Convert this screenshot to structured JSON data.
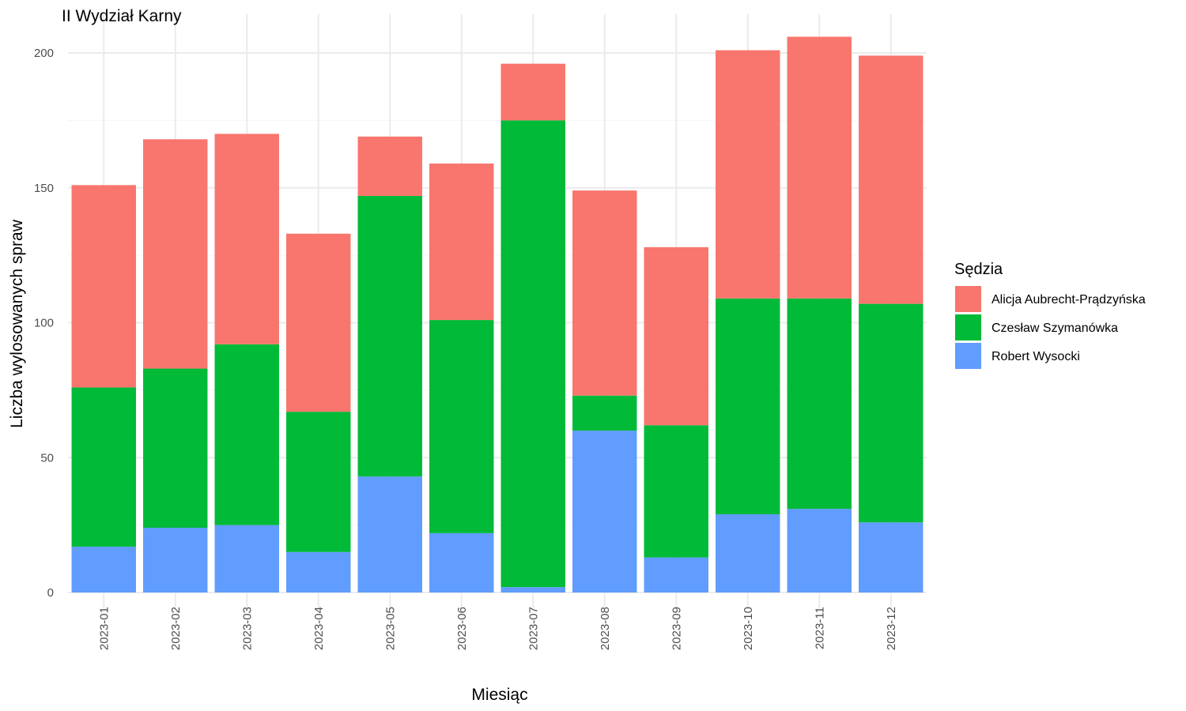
{
  "chart_data": {
    "type": "bar",
    "stacked": true,
    "title": "II Wydział Karny",
    "xlabel": "Miesiąc",
    "ylabel": "Liczba wylosowanych spraw",
    "categories": [
      "2023-01",
      "2023-02",
      "2023-03",
      "2023-04",
      "2023-05",
      "2023-06",
      "2023-07",
      "2023-08",
      "2023-09",
      "2023-10",
      "2023-11",
      "2023-12"
    ],
    "series": [
      {
        "name": "Robert Wysocki",
        "color": "#619CFF",
        "values": [
          17,
          24,
          25,
          15,
          43,
          22,
          2,
          60,
          13,
          29,
          31,
          26
        ]
      },
      {
        "name": "Czesław Szymanówka",
        "color": "#00BA38",
        "values": [
          59,
          59,
          67,
          52,
          104,
          79,
          173,
          13,
          49,
          80,
          78,
          81
        ]
      },
      {
        "name": "Alicja Aubrecht-Prądzyńska",
        "color": "#F8766D",
        "values": [
          75,
          85,
          78,
          66,
          22,
          58,
          21,
          76,
          66,
          92,
          97,
          92
        ]
      }
    ],
    "ylim": [
      0,
      210
    ],
    "yticks": [
      0,
      50,
      100,
      150,
      200
    ],
    "grid": true,
    "legend": {
      "title": "Sędzia",
      "placement": "right",
      "order": [
        "Alicja Aubrecht-Prądzyńska",
        "Czesław Szymanówka",
        "Robert Wysocki"
      ]
    }
  }
}
